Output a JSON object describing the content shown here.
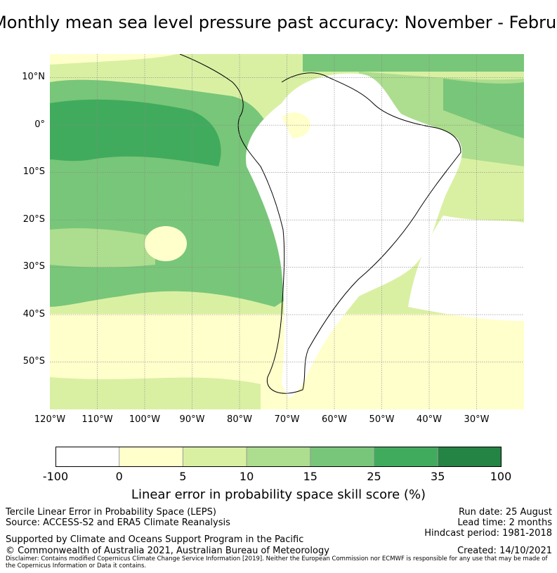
{
  "title": "Monthly mean sea level pressure past accuracy: November - February",
  "map": {
    "lat_labels": [
      {
        "text": "10°N",
        "lat": 10
      },
      {
        "text": "0°",
        "lat": 0
      },
      {
        "text": "10°S",
        "lat": -10
      },
      {
        "text": "20°S",
        "lat": -20
      },
      {
        "text": "30°S",
        "lat": -30
      },
      {
        "text": "40°S",
        "lat": -40
      },
      {
        "text": "50°S",
        "lat": -50
      }
    ],
    "lon_labels": [
      {
        "text": "120°W",
        "lon": -120
      },
      {
        "text": "110°W",
        "lon": -110
      },
      {
        "text": "100°W",
        "lon": -100
      },
      {
        "text": "90°W",
        "lon": -90
      },
      {
        "text": "80°W",
        "lon": -80
      },
      {
        "text": "70°W",
        "lon": -70
      },
      {
        "text": "60°W",
        "lon": -60
      },
      {
        "text": "50°W",
        "lon": -50
      },
      {
        "text": "40°W",
        "lon": -40
      },
      {
        "text": "30°W",
        "lon": -30
      }
    ],
    "extent": {
      "lon_min": -120,
      "lon_max": -20,
      "lat_min": -60,
      "lat_max": 15
    },
    "gridlines": true
  },
  "colorbar": {
    "ticks": [
      "-100",
      "0",
      "5",
      "10",
      "15",
      "25",
      "35",
      "100"
    ],
    "colors": [
      "#ffffff",
      "#ffffcc",
      "#d9f0a3",
      "#addd8e",
      "#78c679",
      "#41ab5d",
      "#238443"
    ],
    "label": "Linear error in probability space skill score (%)"
  },
  "info": {
    "line1": "Tercile Linear Error in Probability Space (LEPS)",
    "line2": "Source: ACCESS-S2 and ERA5 Climate Reanalysis",
    "line3": "Supported by Climate and Oceans Support Program in the Pacific",
    "line4": "© Commonwealth of Australia 2021, Australian Bureau of Meteorology",
    "run_date": "Run date: 25 August",
    "lead_time": "Lead time: 2 months",
    "hindcast": "Hindcast period: 1981-2018",
    "created": "Created: 14/10/2021"
  },
  "disclaimer": "Disclaimer: Contains modified Copernicus Climate Change Service Information [2019]. Neither the European Commission nor ECMWF is responsible for any use that may be made of the Copernicus Information or Data it contains."
}
